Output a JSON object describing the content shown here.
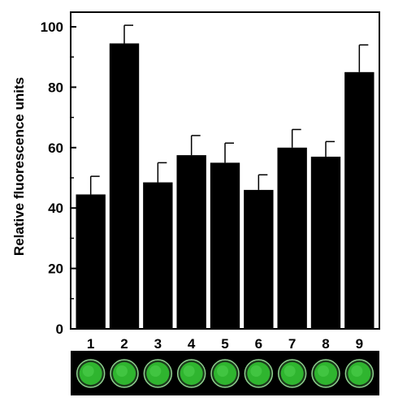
{
  "chart_data": {
    "type": "bar",
    "categories": [
      "1",
      "2",
      "3",
      "4",
      "5",
      "6",
      "7",
      "8",
      "9"
    ],
    "values": [
      44.5,
      94.5,
      48.5,
      57.5,
      55,
      46,
      60,
      57,
      85
    ],
    "error": [
      6,
      6,
      6.5,
      6.5,
      6.5,
      5,
      6,
      5,
      9
    ],
    "ylabel": "Relative fluorescence units",
    "xlabel": "",
    "ylim": [
      0,
      100
    ],
    "yticks": [
      0,
      20,
      40,
      60,
      80,
      100
    ],
    "yticks_labels": [
      "0",
      "20",
      "40",
      "60",
      "80",
      "100"
    ],
    "grid": false,
    "bar_color": "#000000",
    "inset_image": {
      "description_icon": "fluorescent-well-strip",
      "wells": 9,
      "well_color": "#2fb52f",
      "background": "#000000"
    }
  }
}
